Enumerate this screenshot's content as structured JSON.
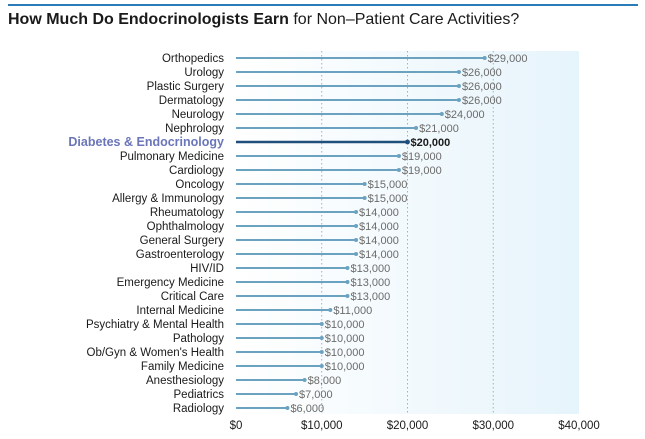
{
  "title": {
    "bold": "How Much Do Endocrinologists Earn",
    "rest": "for Non–Patient Care Activities?"
  },
  "colors": {
    "bar": "#6ba2c0",
    "highlight_bar": "#1f4f7a",
    "highlight_label": "#6a76b8",
    "value_text": "#6b6b6b",
    "plot_bg_start": "#ffffff",
    "plot_bg_end": "#e6f4fb",
    "gridline": "#9fb2c2",
    "title_rule": "#2b7bb9"
  },
  "chart_data": {
    "type": "bar",
    "orientation": "horizontal",
    "title": "How Much Do Endocrinologists Earn for Non–Patient Care Activities?",
    "categories": [
      "Orthopedics",
      "Urology",
      "Plastic Surgery",
      "Dermatology",
      "Neurology",
      "Nephrology",
      "Diabetes & Endocrinology",
      "Pulmonary Medicine",
      "Cardiology",
      "Oncology",
      "Allergy & Immunology",
      "Rheumatology",
      "Ophthalmology",
      "General Surgery",
      "Gastroenterology",
      "HIV/ID",
      "Emergency Medicine",
      "Critical Care",
      "Internal Medicine",
      "Psychiatry & Mental Health",
      "Pathology",
      "Ob/Gyn & Women's Health",
      "Family Medicine",
      "Anesthesiology",
      "Pediatrics",
      "Radiology"
    ],
    "values": [
      29000,
      26000,
      26000,
      26000,
      24000,
      21000,
      20000,
      19000,
      19000,
      15000,
      15000,
      14000,
      14000,
      14000,
      14000,
      13000,
      13000,
      13000,
      11000,
      10000,
      10000,
      10000,
      10000,
      8000,
      7000,
      6000
    ],
    "value_labels": [
      "$29,000",
      "$26,000",
      "$26,000",
      "$26,000",
      "$24,000",
      "$21,000",
      "$20,000",
      "$19,000",
      "$19,000",
      "$15,000",
      "$15,000",
      "$14,000",
      "$14,000",
      "$14,000",
      "$14,000",
      "$13,000",
      "$13,000",
      "$13,000",
      "$11,000",
      "$10,000",
      "$10,000",
      "$10,000",
      "$10,000",
      "$8,000",
      "$7,000",
      "$6,000"
    ],
    "highlight": "Diabetes & Endocrinology",
    "xlim": [
      0,
      40000
    ],
    "x_ticks": [
      0,
      10000,
      20000,
      30000,
      40000
    ],
    "x_tick_labels": [
      "$0",
      "$10,000",
      "$20,000",
      "$30,000",
      "$40,000"
    ],
    "grid": "vertical dotted",
    "xlabel": "",
    "ylabel": ""
  }
}
